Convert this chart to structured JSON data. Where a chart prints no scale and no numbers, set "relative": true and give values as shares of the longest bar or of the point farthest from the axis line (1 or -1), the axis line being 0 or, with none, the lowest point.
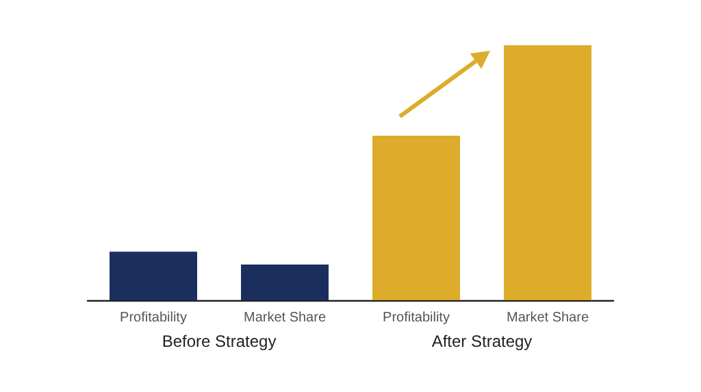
{
  "chart_data": {
    "type": "bar",
    "relative": true,
    "categories": [
      "Profitability",
      "Market Share",
      "Profitability",
      "Market Share"
    ],
    "values": [
      0.19,
      0.14,
      0.645,
      1
    ],
    "colors": [
      "#1b2f5e",
      "#1b2f5e",
      "#dcac2a",
      "#dcac2a"
    ],
    "annotations": [
      "Before Strategy",
      "After Strategy"
    ]
  }
}
